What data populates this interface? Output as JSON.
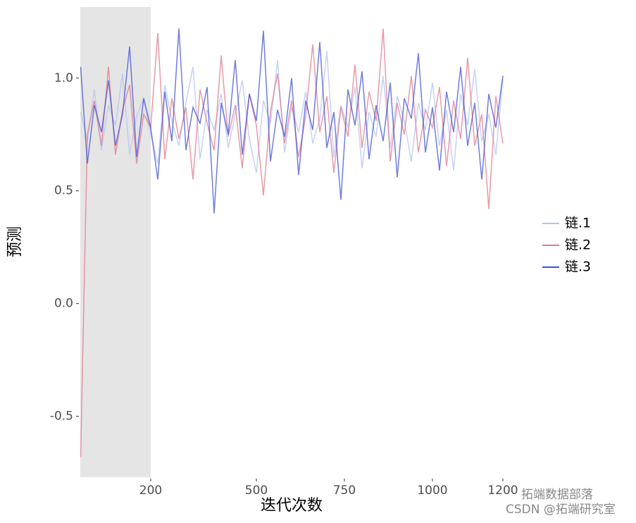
{
  "chart_data": {
    "type": "line",
    "x_label": "迭代次数",
    "y_label": "预测",
    "x": [
      1,
      20,
      40,
      60,
      80,
      100,
      120,
      140,
      160,
      180,
      200,
      220,
      240,
      260,
      280,
      300,
      320,
      340,
      360,
      380,
      400,
      420,
      440,
      460,
      480,
      500,
      520,
      540,
      560,
      580,
      600,
      620,
      640,
      660,
      680,
      700,
      720,
      740,
      760,
      780,
      800,
      820,
      840,
      860,
      880,
      900,
      920,
      940,
      960,
      980,
      1000,
      1020,
      1040,
      1060,
      1080,
      1100,
      1120,
      1140,
      1160,
      1180,
      1200
    ],
    "series": [
      {
        "name": "链.1",
        "color": "#b3c3ef",
        "values": [
          0.85,
          0.72,
          0.95,
          0.68,
          0.88,
          0.79,
          1.02,
          0.66,
          0.83,
          0.91,
          0.75,
          0.62,
          0.97,
          0.81,
          0.7,
          0.89,
          1.05,
          0.64,
          0.86,
          0.77,
          0.93,
          0.69,
          0.84,
          0.99,
          0.73,
          0.58,
          0.9,
          0.8,
          1.08,
          0.67,
          0.87,
          0.76,
          0.94,
          0.71,
          0.82,
          1.12,
          0.65,
          0.88,
          0.78,
          0.96,
          0.6,
          0.85,
          0.74,
          1.01,
          0.69,
          0.92,
          0.81,
          0.63,
          0.89,
          0.77,
          0.98,
          0.7,
          0.86,
          0.59,
          0.93,
          0.79,
          1.04,
          0.72,
          0.84,
          0.66,
          1.0
        ]
      },
      {
        "name": "链.2",
        "color": "#e0788c",
        "values": [
          -0.68,
          0.75,
          0.9,
          0.7,
          1.05,
          0.66,
          0.86,
          0.97,
          0.62,
          0.84,
          0.78,
          1.2,
          0.64,
          0.91,
          0.73,
          0.87,
          0.55,
          0.95,
          0.8,
          0.68,
          1.1,
          0.74,
          0.88,
          0.6,
          0.93,
          0.79,
          0.48,
          0.85,
          1.02,
          0.71,
          0.9,
          0.65,
          0.83,
          1.15,
          0.76,
          0.92,
          0.58,
          0.87,
          0.74,
          1.06,
          0.69,
          0.94,
          0.81,
          1.22,
          0.63,
          0.89,
          0.75,
          1.01,
          0.67,
          0.86,
          0.78,
          0.96,
          0.61,
          0.9,
          0.73,
          1.09,
          0.7,
          0.84,
          0.42,
          0.92,
          0.71
        ]
      },
      {
        "name": "链.3",
        "color": "#3f51d6",
        "values": [
          1.05,
          0.62,
          0.88,
          0.76,
          0.99,
          0.7,
          0.84,
          1.14,
          0.65,
          0.91,
          0.78,
          0.55,
          0.94,
          0.72,
          1.22,
          0.68,
          0.87,
          0.8,
          0.96,
          0.4,
          0.89,
          0.75,
          1.08,
          0.66,
          0.93,
          0.81,
          1.21,
          0.63,
          0.86,
          0.74,
          1.0,
          0.57,
          0.9,
          0.77,
          1.16,
          0.69,
          0.85,
          0.46,
          0.95,
          0.79,
          1.03,
          0.64,
          0.88,
          0.72,
          0.98,
          0.56,
          0.91,
          0.82,
          1.11,
          0.67,
          0.87,
          0.59,
          0.94,
          0.76,
          1.05,
          0.7,
          0.89,
          0.55,
          0.93,
          0.78,
          1.01
        ]
      }
    ],
    "warmup": [
      0,
      200
    ],
    "xlim": [
      0,
      1200
    ],
    "xticks": [
      200,
      500,
      750,
      1000,
      1200
    ],
    "ylim": [
      -0.77,
      1.315
    ],
    "yticks": [
      -0.5,
      {
        "value": 0,
        "label": "0.0"
      },
      0.5,
      {
        "value": 1,
        "label": "1.0"
      }
    ],
    "grid": false,
    "legend": "right",
    "watermark": [
      "拓端数据部落",
      "CSDN @拓端研究室"
    ]
  }
}
